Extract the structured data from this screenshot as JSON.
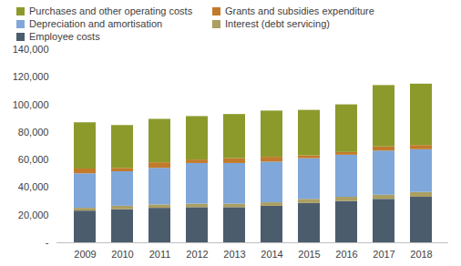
{
  "chart_data": {
    "type": "bar",
    "stacked": true,
    "legend": "top",
    "grid": false,
    "categories": [
      "2009",
      "2010",
      "2011",
      "2012",
      "2013",
      "2014",
      "2015",
      "2016",
      "2017",
      "2018"
    ],
    "series": [
      {
        "name": "Employee costs",
        "color": "#4b5d6d",
        "values": [
          23000,
          24000,
          25000,
          25500,
          25500,
          26500,
          28500,
          30000,
          31500,
          33000
        ]
      },
      {
        "name": "Interest (debt servicing)",
        "color": "#ab9f62",
        "values": [
          2000,
          2500,
          2500,
          2500,
          2500,
          2500,
          3000,
          3000,
          3000,
          3500
        ]
      },
      {
        "name": "Depreciation and amortisation",
        "color": "#7fa7d9",
        "values": [
          25000,
          25000,
          26500,
          29500,
          29500,
          29500,
          29500,
          30500,
          32000,
          31000
        ]
      },
      {
        "name": "Grants and subsidies expenditure",
        "color": "#c27a2c",
        "values": [
          3500,
          2500,
          4000,
          2500,
          3500,
          3500,
          2000,
          2000,
          3000,
          3000
        ]
      },
      {
        "name": "Purchases and other operating costs",
        "color": "#8c9a2c",
        "values": [
          33500,
          31000,
          31500,
          31500,
          32000,
          33500,
          33000,
          34500,
          44500,
          44500
        ]
      }
    ],
    "ylim": [
      0,
      140000
    ],
    "yticks": [
      {
        "value": 0,
        "label": "-"
      },
      {
        "value": 20000,
        "label": "20,000"
      },
      {
        "value": 40000,
        "label": "40,000"
      },
      {
        "value": 60000,
        "label": "60,000"
      },
      {
        "value": 80000,
        "label": "80,000"
      },
      {
        "value": 100000,
        "label": "100,000"
      },
      {
        "value": 120000,
        "label": "120,000"
      },
      {
        "value": 140000,
        "label": "140,000"
      }
    ]
  }
}
